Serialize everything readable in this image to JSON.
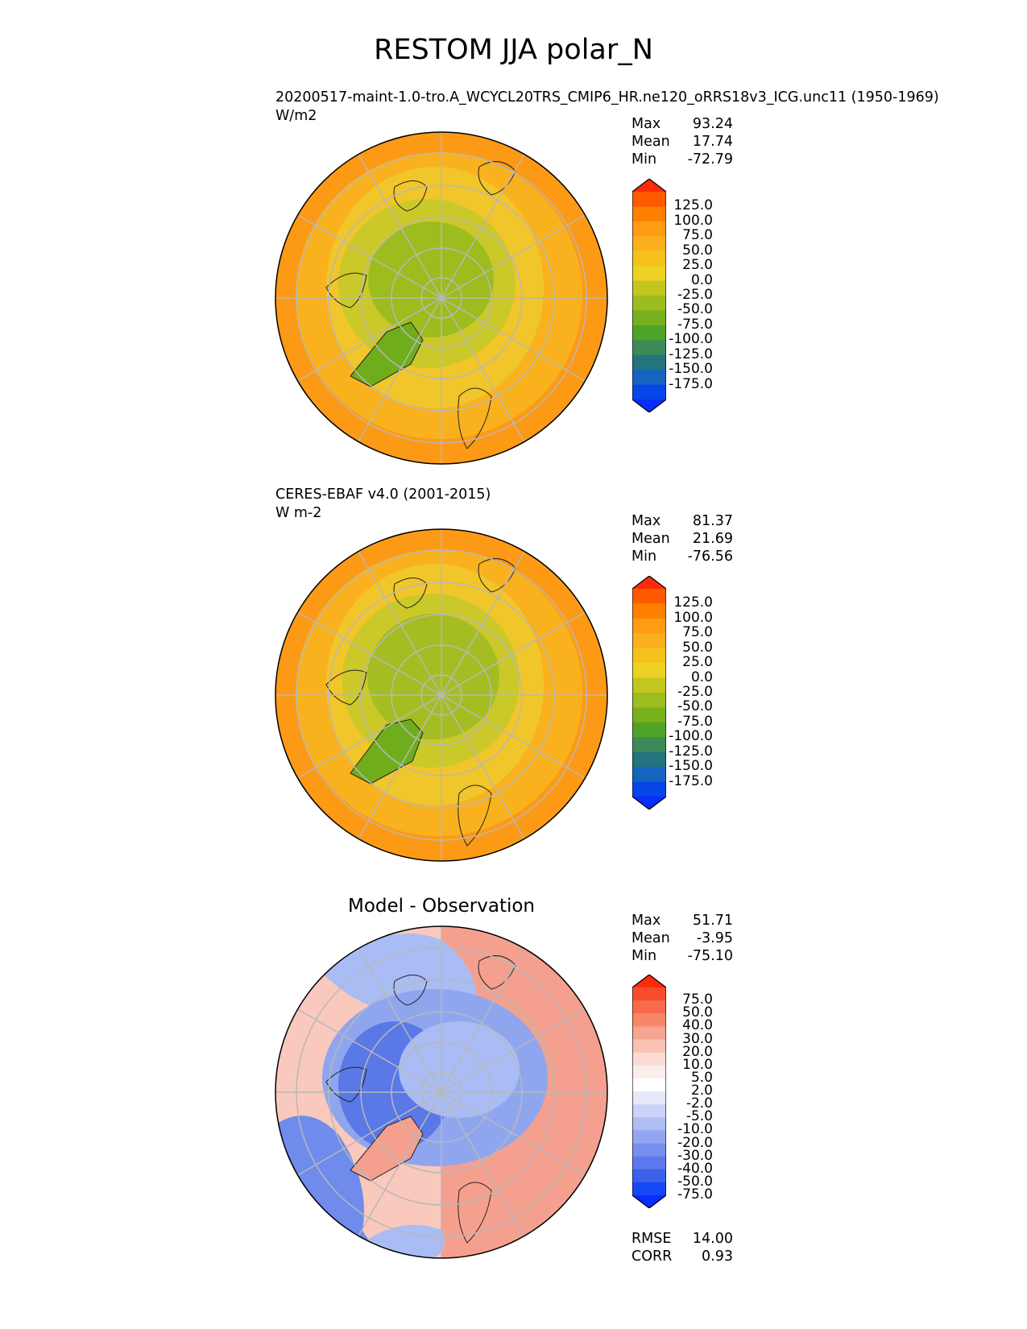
{
  "title": "RESTOM JJA polar_N",
  "panels": [
    {
      "subtitle": "20200517-maint-1.0-tro.A_WCYCL20TRS_CMIP6_HR.ne120_oRRS18v3_ICG.unc11 (1950-1969)",
      "units": "W/m2",
      "stats": {
        "max_label": "Max",
        "max": "93.24",
        "mean_label": "Mean",
        "mean": "17.74",
        "min_label": "Min",
        "min": "-72.79"
      },
      "colorbar": {
        "labels": [
          "125.0",
          "100.0",
          "75.0",
          "50.0",
          "25.0",
          "0.0",
          "-25.0",
          "-50.0",
          "-75.0",
          "-100.0",
          "-125.0",
          "-150.0",
          "-175.0"
        ],
        "colors": [
          "#ff2a0a",
          "#ff5a00",
          "#ff8000",
          "#ff9c14",
          "#fab01f",
          "#f5c21c",
          "#eed125",
          "#c4c51e",
          "#9dbc1e",
          "#78b01d",
          "#4fa326",
          "#3b8a57",
          "#23747f",
          "#1565c0",
          "#0645e8",
          "#0a2cff"
        ]
      }
    },
    {
      "subtitle": "CERES-EBAF v4.0 (2001-2015)",
      "units": "W m-2",
      "stats": {
        "max_label": "Max",
        "max": "81.37",
        "mean_label": "Mean",
        "mean": "21.69",
        "min_label": "Min",
        "min": "-76.56"
      },
      "colorbar": {
        "labels": [
          "125.0",
          "100.0",
          "75.0",
          "50.0",
          "25.0",
          "0.0",
          "-25.0",
          "-50.0",
          "-75.0",
          "-100.0",
          "-125.0",
          "-150.0",
          "-175.0"
        ],
        "colors": [
          "#ff2a0a",
          "#ff5a00",
          "#ff8000",
          "#ff9c14",
          "#fab01f",
          "#f5c21c",
          "#eed125",
          "#c4c51e",
          "#9dbc1e",
          "#78b01d",
          "#4fa326",
          "#3b8a57",
          "#23747f",
          "#1565c0",
          "#0645e8",
          "#0a2cff"
        ]
      }
    },
    {
      "title": "Model - Observation",
      "stats": {
        "max_label": "Max",
        "max": "51.71",
        "mean_label": "Mean",
        "mean": "-3.95",
        "min_label": "Min",
        "min": "-75.10"
      },
      "colorbar": {
        "labels": [
          "75.0",
          "50.0",
          "40.0",
          "30.0",
          "20.0",
          "10.0",
          "5.0",
          "2.0",
          "-2.0",
          "-5.0",
          "-10.0",
          "-20.0",
          "-30.0",
          "-40.0",
          "-50.0",
          "-75.0"
        ],
        "colors": [
          "#ff2a0a",
          "#f84d2c",
          "#f86a4b",
          "#f78867",
          "#f7a592",
          "#f8c1b4",
          "#fadbd2",
          "#fbeeea",
          "#ffffff",
          "#e5e9fb",
          "#cbd3f7",
          "#afbdf4",
          "#94a6f2",
          "#7790ef",
          "#5b79ec",
          "#3a61e8",
          "#1648f8",
          "#0a2cff"
        ]
      },
      "metrics": {
        "rmse_label": "RMSE",
        "rmse": "14.00",
        "corr_label": "CORR",
        "corr": "0.93"
      }
    }
  ],
  "map_colors": {
    "panel1": {
      "outer": "#fd9a15",
      "mid1": "#f9b21e",
      "mid2": "#f1c62a",
      "inner": "#cbc82a",
      "core": "#9dbc1e",
      "greenland": "#6fad1d"
    },
    "panel2": {
      "outer": "#fd9a15",
      "mid1": "#f9b21e",
      "mid2": "#f1c62a",
      "inner": "#cbc82a",
      "core": "#a5bd22",
      "greenland": "#6fad1d"
    },
    "panel3": {
      "blue_dark": "#3c5fe0",
      "blue_mid": "#6f8cec",
      "blue_light": "#a9bcf4",
      "white": "#f4f4f8",
      "red_light": "#f9c9bd",
      "red_mid": "#f5a08f",
      "red_dark": "#e8504a"
    }
  }
}
